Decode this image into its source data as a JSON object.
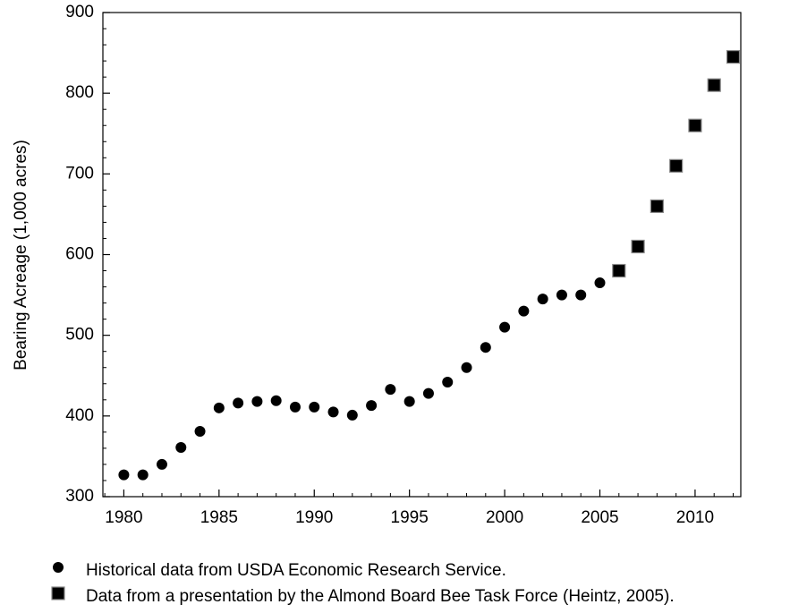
{
  "chart_data": {
    "type": "scatter",
    "ylabel": "Bearing Acreage (1,000 acres)",
    "series": [
      {
        "name": "Historical data from USDA Economic Research Service.",
        "marker": "circle",
        "color": "#000000",
        "x": [
          1980,
          1981,
          1982,
          1983,
          1984,
          1985,
          1986,
          1987,
          1988,
          1989,
          1990,
          1991,
          1992,
          1993,
          1994,
          1995,
          1996,
          1997,
          1998,
          1999,
          2000,
          2001,
          2002,
          2003,
          2004,
          2005
        ],
        "values": [
          327,
          327,
          340,
          361,
          381,
          410,
          416,
          418,
          419,
          411,
          411,
          405,
          401,
          413,
          433,
          418,
          428,
          442,
          460,
          485,
          510,
          530,
          545,
          550,
          550,
          565
        ]
      },
      {
        "name": "Data from a presentation by the Almond Board Bee Task Force (Heintz, 2005).",
        "marker": "square",
        "color": "#000000",
        "x": [
          2006,
          2007,
          2008,
          2009,
          2010,
          2011,
          2012
        ],
        "values": [
          580,
          610,
          660,
          710,
          760,
          810,
          845
        ]
      }
    ],
    "xlim": [
      1978.9,
      2012.4
    ],
    "xticks": [
      1980,
      1985,
      1990,
      1995,
      2000,
      2005,
      2010
    ],
    "x_minor_ticks": [
      1979,
      1981,
      1982,
      1983,
      1984,
      1986,
      1987,
      1988,
      1989,
      1991,
      1992,
      1993,
      1994,
      1996,
      1997,
      1998,
      1999,
      2001,
      2002,
      2003,
      2004,
      2006,
      2007,
      2008,
      2009,
      2011,
      2012
    ],
    "ylim": [
      300,
      900
    ],
    "yticks": [
      300,
      400,
      500,
      600,
      700,
      800,
      900
    ],
    "y_minor_ticks": [
      320,
      340,
      360,
      380,
      420,
      440,
      460,
      480,
      520,
      540,
      560,
      580,
      620,
      640,
      660,
      680,
      720,
      740,
      760,
      780,
      820,
      840,
      860,
      880
    ],
    "legend": "bottom",
    "grid": false
  }
}
